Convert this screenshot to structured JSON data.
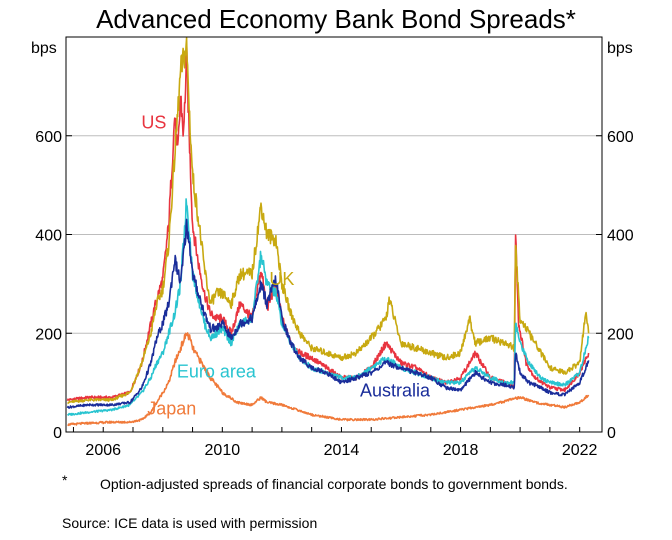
{
  "chart_data": {
    "type": "line",
    "title": "Advanced Economy Bank Bond Spreads*",
    "ylabel_left": "bps",
    "ylabel_right": "bps",
    "ylim": [
      0,
      800
    ],
    "xlim": [
      2004.75,
      2022.75
    ],
    "y_ticks": [
      0,
      200,
      400,
      600
    ],
    "x_ticks": [
      2006,
      2010,
      2014,
      2018,
      2022
    ],
    "grid": true,
    "legend": "inline labels",
    "series": [
      {
        "name": "US",
        "color": "#e8343f",
        "x": [
          2004.8,
          2005.5,
          2006.3,
          2006.9,
          2007.3,
          2007.6,
          2007.8,
          2008.0,
          2008.2,
          2008.4,
          2008.5,
          2008.6,
          2008.7,
          2008.8,
          2008.9,
          2009.0,
          2009.2,
          2009.4,
          2009.6,
          2009.8,
          2010.0,
          2010.3,
          2010.6,
          2011.0,
          2011.3,
          2011.5,
          2011.8,
          2012.0,
          2012.3,
          2012.6,
          2013.0,
          2013.5,
          2014.0,
          2014.5,
          2015.0,
          2015.5,
          2016.0,
          2016.5,
          2017.0,
          2017.5,
          2018.0,
          2018.5,
          2019.0,
          2019.5,
          2019.8,
          2019.85,
          2019.95,
          2020.2,
          2020.5,
          2021.0,
          2021.5,
          2022.0,
          2022.3
        ],
        "values": [
          65,
          70,
          70,
          80,
          140,
          220,
          270,
          310,
          420,
          640,
          560,
          680,
          600,
          760,
          580,
          420,
          340,
          280,
          240,
          230,
          230,
          200,
          260,
          230,
          330,
          250,
          300,
          230,
          180,
          160,
          150,
          130,
          110,
          110,
          130,
          180,
          140,
          130,
          110,
          100,
          110,
          160,
          110,
          100,
          90,
          410,
          220,
          140,
          110,
          90,
          85,
          120,
          160
        ]
      },
      {
        "name": "UK",
        "color": "#c8a911",
        "x": [
          2004.8,
          2005.5,
          2006.3,
          2006.9,
          2007.3,
          2007.6,
          2007.8,
          2008.0,
          2008.2,
          2008.4,
          2008.6,
          2008.8,
          2008.9,
          2009.0,
          2009.2,
          2009.4,
          2009.6,
          2009.8,
          2010.0,
          2010.3,
          2010.6,
          2011.0,
          2011.3,
          2011.5,
          2011.8,
          2012.0,
          2012.3,
          2012.6,
          2013.0,
          2013.5,
          2014.0,
          2014.5,
          2015.0,
          2015.5,
          2015.6,
          2016.0,
          2016.5,
          2017.0,
          2017.5,
          2018.0,
          2018.3,
          2018.5,
          2019.0,
          2019.5,
          2019.8,
          2019.85,
          2020.0,
          2020.3,
          2020.7,
          2021.0,
          2021.5,
          2022.0,
          2022.2,
          2022.3
        ],
        "values": [
          60,
          65,
          65,
          80,
          140,
          200,
          260,
          290,
          380,
          560,
          730,
          780,
          640,
          520,
          430,
          330,
          260,
          280,
          280,
          260,
          320,
          320,
          460,
          400,
          390,
          300,
          240,
          200,
          170,
          160,
          150,
          160,
          190,
          230,
          270,
          180,
          170,
          160,
          150,
          160,
          230,
          180,
          190,
          180,
          170,
          370,
          230,
          200,
          160,
          130,
          120,
          140,
          240,
          200
        ]
      },
      {
        "name": "Euro area",
        "color": "#29c4d0",
        "x": [
          2004.8,
          2005.5,
          2006.3,
          2006.9,
          2007.3,
          2007.6,
          2007.8,
          2008.0,
          2008.2,
          2008.4,
          2008.6,
          2008.8,
          2008.9,
          2009.0,
          2009.2,
          2009.4,
          2009.6,
          2009.8,
          2010.0,
          2010.3,
          2010.6,
          2011.0,
          2011.3,
          2011.5,
          2011.8,
          2012.0,
          2012.3,
          2012.6,
          2013.0,
          2013.5,
          2014.0,
          2014.5,
          2015.0,
          2015.5,
          2016.0,
          2016.5,
          2017.0,
          2017.5,
          2018.0,
          2018.5,
          2019.0,
          2019.5,
          2019.8,
          2019.85,
          2020.0,
          2020.3,
          2020.7,
          2021.0,
          2021.5,
          2022.0,
          2022.3
        ],
        "values": [
          35,
          40,
          45,
          55,
          80,
          110,
          140,
          160,
          200,
          240,
          300,
          470,
          400,
          320,
          270,
          220,
          190,
          200,
          210,
          180,
          220,
          230,
          360,
          300,
          280,
          220,
          180,
          150,
          130,
          120,
          110,
          110,
          130,
          150,
          130,
          120,
          110,
          100,
          100,
          130,
          110,
          100,
          100,
          220,
          180,
          140,
          110,
          100,
          95,
          120,
          190
        ]
      },
      {
        "name": "Australia",
        "color": "#1a2d9a",
        "x": [
          2004.8,
          2005.5,
          2006.3,
          2006.9,
          2007.3,
          2007.6,
          2007.8,
          2008.0,
          2008.2,
          2008.4,
          2008.6,
          2008.8,
          2008.9,
          2009.0,
          2009.2,
          2009.4,
          2009.6,
          2009.8,
          2010.0,
          2010.3,
          2010.6,
          2011.0,
          2011.3,
          2011.5,
          2011.8,
          2012.0,
          2012.3,
          2012.6,
          2013.0,
          2013.5,
          2014.0,
          2014.5,
          2015.0,
          2015.5,
          2016.0,
          2016.5,
          2017.0,
          2017.5,
          2018.0,
          2018.5,
          2019.0,
          2019.5,
          2019.8,
          2019.85,
          2020.0,
          2020.3,
          2020.7,
          2021.0,
          2021.5,
          2022.0,
          2022.3
        ],
        "values": [
          50,
          55,
          55,
          60,
          90,
          140,
          190,
          220,
          260,
          350,
          300,
          420,
          380,
          320,
          280,
          240,
          210,
          210,
          220,
          190,
          220,
          230,
          300,
          260,
          310,
          230,
          180,
          150,
          130,
          120,
          100,
          110,
          120,
          140,
          130,
          120,
          110,
          90,
          85,
          120,
          100,
          95,
          90,
          160,
          120,
          100,
          90,
          80,
          75,
          100,
          145
        ]
      },
      {
        "name": "Japan",
        "color": "#f07a3a",
        "x": [
          2004.8,
          2005.5,
          2006.3,
          2006.9,
          2007.3,
          2007.6,
          2007.8,
          2008.0,
          2008.2,
          2008.4,
          2008.6,
          2008.8,
          2008.9,
          2009.0,
          2009.3,
          2009.6,
          2010.0,
          2010.5,
          2011.0,
          2011.3,
          2011.5,
          2012.0,
          2012.5,
          2013.0,
          2014.0,
          2015.0,
          2016.0,
          2017.0,
          2018.0,
          2019.0,
          2020.0,
          2020.5,
          2021.0,
          2021.5,
          2022.0,
          2022.3
        ],
        "values": [
          15,
          18,
          20,
          20,
          25,
          40,
          60,
          80,
          100,
          140,
          170,
          200,
          190,
          170,
          140,
          110,
          80,
          60,
          55,
          70,
          60,
          55,
          45,
          35,
          25,
          25,
          30,
          35,
          45,
          55,
          70,
          60,
          55,
          50,
          60,
          75
        ]
      }
    ]
  },
  "footnote": {
    "mark": "*",
    "text": "Option-adjusted spreads of financial corporate bonds to government bonds."
  },
  "source": "Source:   ICE data is used with permission"
}
